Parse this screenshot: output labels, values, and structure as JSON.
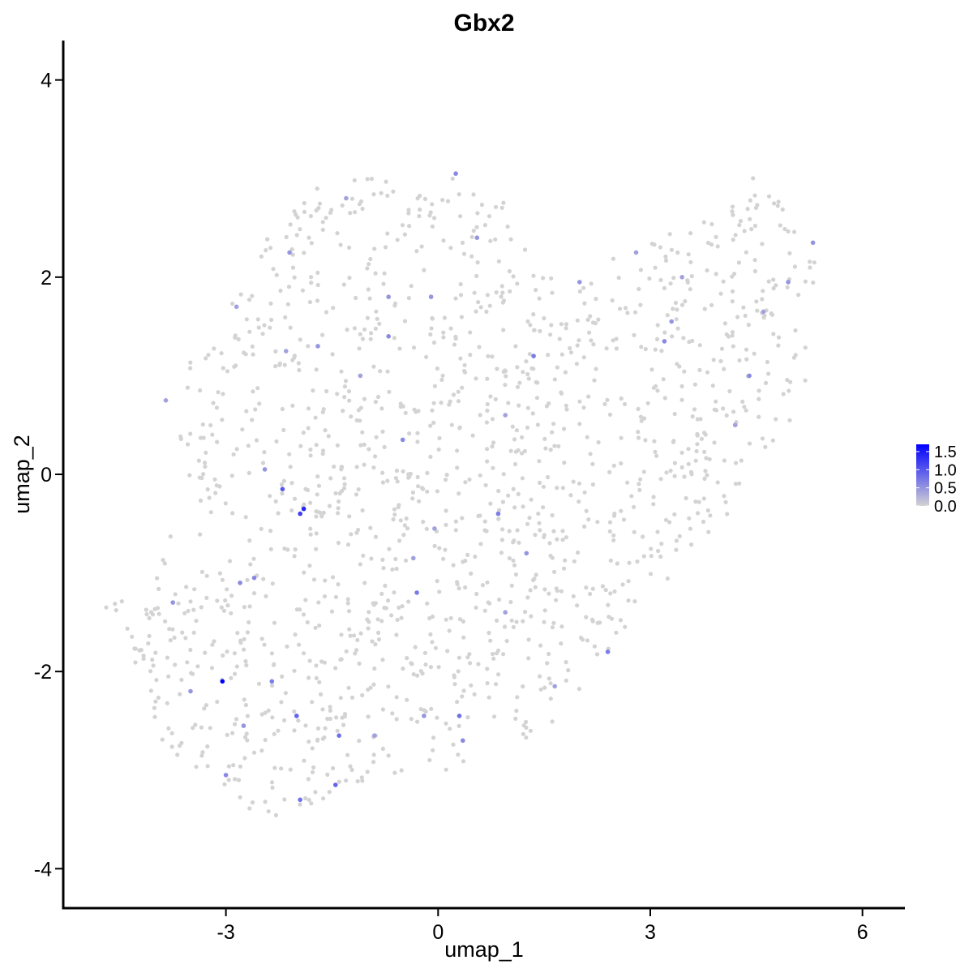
{
  "chart_data": {
    "type": "scatter",
    "title": "Gbx2",
    "xlabel": "umap_1",
    "ylabel": "umap_2",
    "xlim": [
      -5.3,
      6.6
    ],
    "ylim": [
      -4.4,
      4.4
    ],
    "xticks": [
      -3,
      0,
      3,
      6
    ],
    "yticks": [
      -4,
      -2,
      0,
      2,
      4
    ],
    "xtick_labels": [
      "-3",
      "0",
      "3",
      "6"
    ],
    "ytick_labels": [
      "-4",
      "-2",
      "0",
      "2",
      "4"
    ],
    "grid": false,
    "legend": {
      "placement": "right",
      "ticks": [
        0.0,
        0.5,
        1.0,
        1.5
      ],
      "tick_labels": [
        "0.0",
        "0.5",
        "1.0",
        "1.5"
      ],
      "range": [
        0,
        1.7
      ],
      "low_color": "#d3d3d3",
      "high_color": "#0000ff"
    },
    "expressing_points": [
      [
        -3.05,
        -2.1,
        1.7
      ],
      [
        -1.9,
        -0.35,
        1.4
      ],
      [
        -1.95,
        -0.4,
        1.2
      ],
      [
        -2.2,
        -0.15,
        1.0
      ],
      [
        -2.0,
        -2.45,
        0.9
      ],
      [
        -1.45,
        -3.15,
        0.9
      ],
      [
        -1.4,
        -2.65,
        0.8
      ],
      [
        -1.95,
        -3.3,
        0.8
      ],
      [
        -2.35,
        -2.1,
        0.7
      ],
      [
        -0.3,
        -1.2,
        0.7
      ],
      [
        0.3,
        -2.45,
        0.8
      ],
      [
        2.4,
        -1.8,
        0.7
      ],
      [
        0.25,
        3.05,
        0.6
      ],
      [
        -0.7,
        1.4,
        0.6
      ],
      [
        1.35,
        1.2,
        0.7
      ],
      [
        0.85,
        -0.4,
        0.7
      ],
      [
        -0.5,
        0.35,
        0.6
      ],
      [
        -3.0,
        -3.05,
        0.6
      ],
      [
        -3.5,
        -2.2,
        0.5
      ],
      [
        -2.8,
        -1.1,
        0.6
      ],
      [
        -0.7,
        1.8,
        0.5
      ],
      [
        -0.1,
        1.8,
        0.5
      ],
      [
        4.4,
        1.0,
        0.6
      ],
      [
        5.3,
        2.35,
        0.5
      ],
      [
        3.2,
        1.35,
        0.6
      ],
      [
        2.0,
        1.95,
        0.5
      ],
      [
        0.55,
        2.4,
        0.5
      ],
      [
        -2.1,
        2.25,
        0.5
      ],
      [
        -2.6,
        -1.05,
        0.6
      ],
      [
        0.35,
        -2.7,
        0.6
      ],
      [
        -0.2,
        -2.45,
        0.5
      ],
      [
        -1.7,
        1.3,
        0.5
      ],
      [
        1.25,
        -0.8,
        0.5
      ],
      [
        -3.75,
        -1.3,
        0.5
      ],
      [
        -2.45,
        0.05,
        0.5
      ],
      [
        3.3,
        1.55,
        0.5
      ],
      [
        4.95,
        1.95,
        0.5
      ],
      [
        -0.05,
        -0.55,
        0.4
      ],
      [
        -1.1,
        1.0,
        0.4
      ],
      [
        -2.75,
        -2.55,
        0.5
      ],
      [
        0.95,
        -1.4,
        0.4
      ],
      [
        -0.9,
        -2.65,
        0.4
      ],
      [
        1.65,
        -2.15,
        0.4
      ],
      [
        2.8,
        2.25,
        0.4
      ],
      [
        -3.85,
        0.75,
        0.4
      ],
      [
        -2.85,
        1.7,
        0.4
      ],
      [
        4.2,
        0.5,
        0.4
      ],
      [
        -1.3,
        2.8,
        0.4
      ],
      [
        0.95,
        0.6,
        0.4
      ],
      [
        -0.35,
        -0.85,
        0.4
      ],
      [
        -2.15,
        1.25,
        0.4
      ],
      [
        3.45,
        2.0,
        0.4
      ],
      [
        4.6,
        1.65,
        0.4
      ]
    ],
    "cell_count_estimate": 1500
  }
}
